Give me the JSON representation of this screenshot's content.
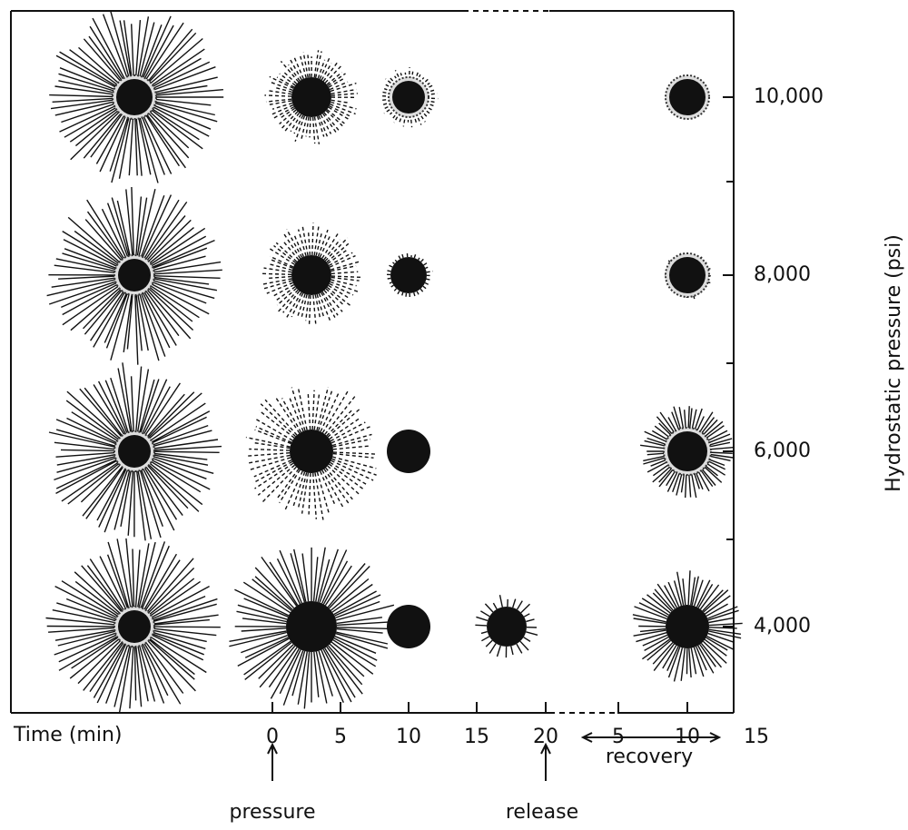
{
  "y_axis": {
    "title": "Hydrostatic pressure (psi)",
    "ticks": [
      "10,000",
      "8,000",
      "6,000",
      "4,000"
    ]
  },
  "x_axis": {
    "title": "Time (min)",
    "ticks": [
      "0",
      "5",
      "10",
      "15",
      "20",
      "5",
      "10",
      "15"
    ]
  },
  "annotations": {
    "pressure": "pressure",
    "release": "release",
    "recovery": "recovery"
  }
}
